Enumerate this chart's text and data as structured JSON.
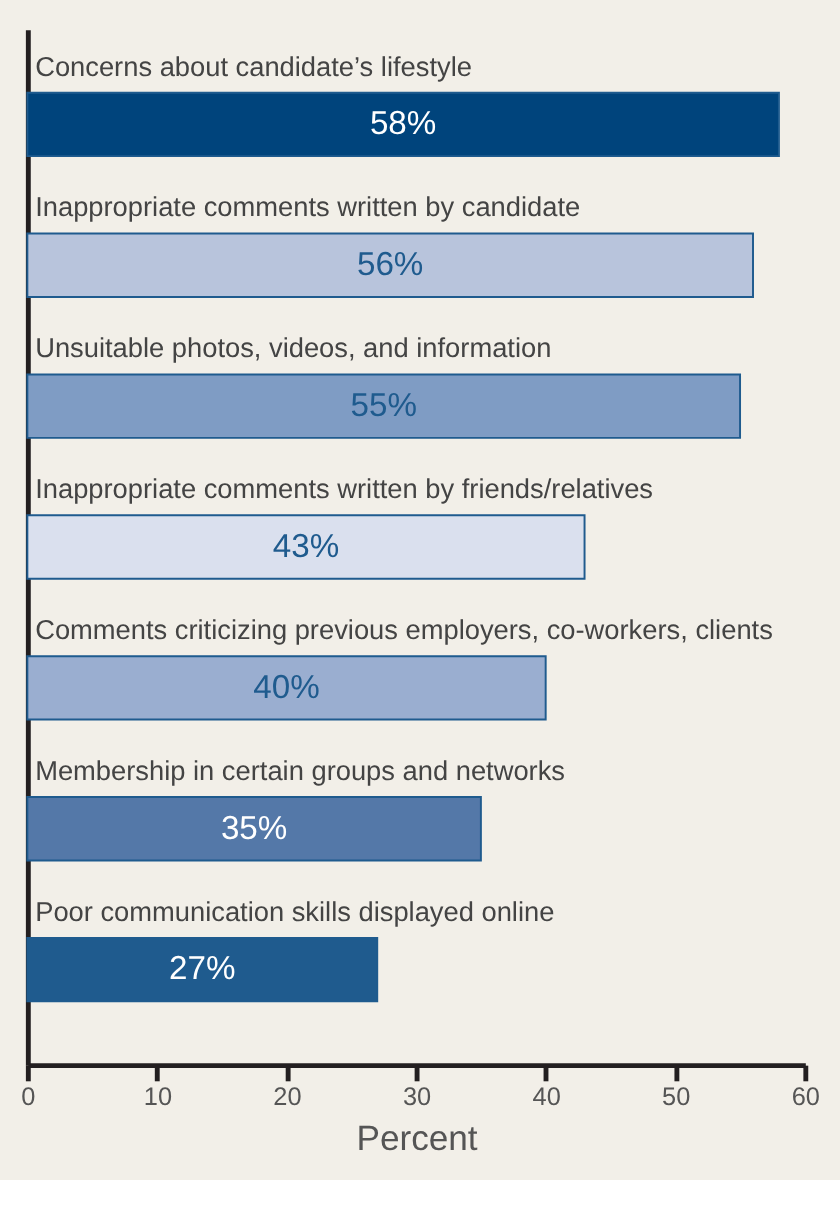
{
  "chart_data": {
    "type": "bar",
    "orientation": "horizontal",
    "xlabel": "Percent",
    "categories": [
      "Concerns about candidate’s lifestyle",
      "Inappropriate comments written by candidate",
      "Unsuitable photos, videos, and information",
      "Inappropriate comments written by friends/relatives",
      "Comments criticizing previous employers, co-workers, clients",
      "Membership in certain groups and networks",
      "Poor communication skills displayed online"
    ],
    "values": [
      58,
      56,
      55,
      43,
      40,
      35,
      27
    ],
    "value_labels": [
      "58%",
      "56%",
      "55%",
      "43%",
      "40%",
      "35%",
      "27%"
    ],
    "colors": [
      "#00447c",
      "#b8c4dc",
      "#7f9cc4",
      "#dae0ee",
      "#9aaed0",
      "#5478a8",
      "#1f5b8e"
    ],
    "xlim": [
      0,
      60
    ],
    "xticks": [
      0,
      10,
      20,
      30,
      40,
      50,
      60
    ],
    "grid": false
  }
}
